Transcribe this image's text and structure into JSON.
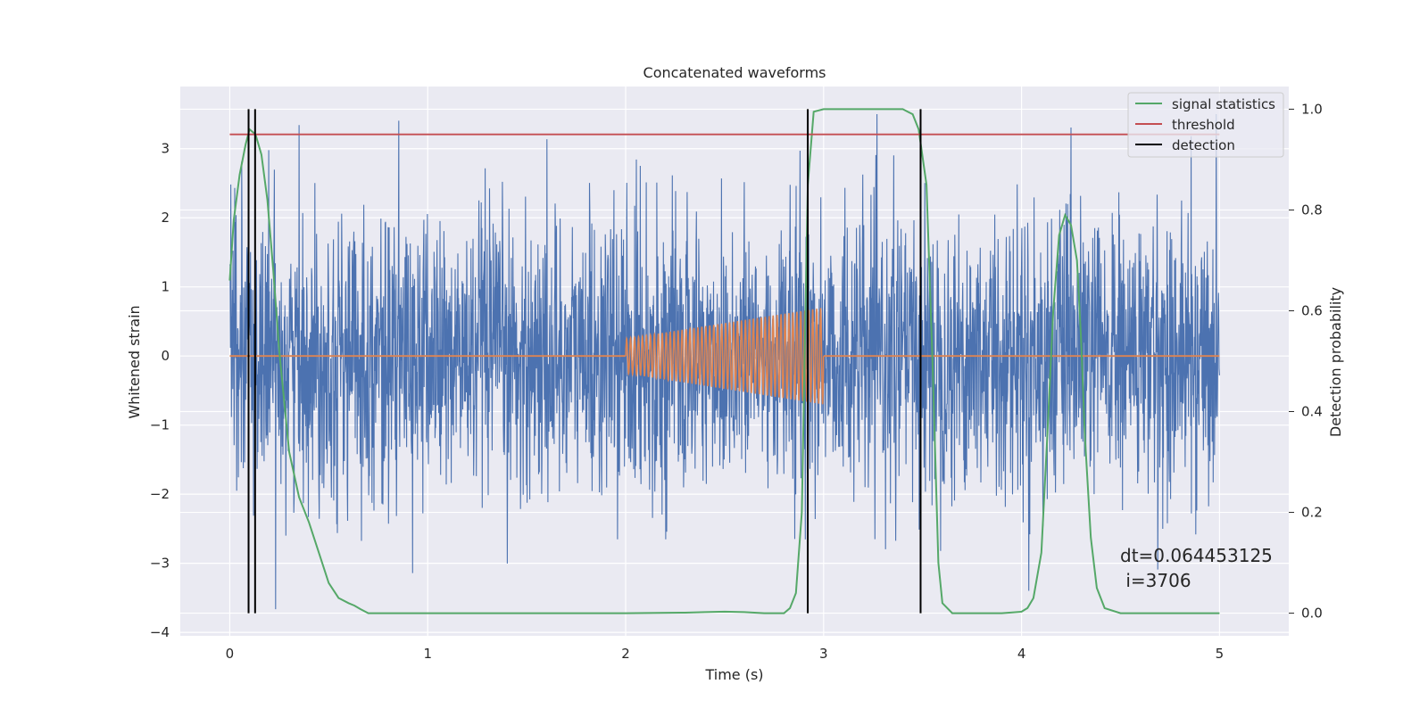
{
  "chart_data": {
    "type": "line",
    "title": "Concatenated waveforms",
    "xlabel": "Time (s)",
    "ylabel": "Whitened strain",
    "y2label": "Detection probability",
    "xlim": [
      -0.25,
      5.35
    ],
    "ylim": [
      -4.05,
      3.9
    ],
    "y2lim": [
      -0.045,
      1.045
    ],
    "x_ticks": [
      0,
      1,
      2,
      3,
      4,
      5
    ],
    "y_ticks": [
      -4,
      -3,
      -2,
      -1,
      0,
      1,
      2,
      3
    ],
    "y2_ticks": [
      0.0,
      0.2,
      0.4,
      0.6,
      0.8,
      1.0
    ],
    "grid": true,
    "legend_position": "top-right",
    "colors": {
      "noise": "#4c72b0",
      "waveform": "#dd8452",
      "signal_statistics": "#55a868",
      "threshold": "#c44e52",
      "detection": "#000000",
      "background": "#eaeaf2"
    },
    "series": [
      {
        "name": "",
        "role": "whitened noise strain",
        "x_range": [
          0,
          5
        ],
        "approx_amplitude_range": [
          -3.7,
          3.5
        ]
      },
      {
        "name": "",
        "role": "injected waveform (chirp)",
        "x_range": [
          2,
          3
        ],
        "start_amplitude": 0.25,
        "end_amplitude": 0.7,
        "cycles": 50
      },
      {
        "name": "signal statistics",
        "axis": "right",
        "x": [
          0.0,
          0.02,
          0.05,
          0.08,
          0.1,
          0.13,
          0.16,
          0.19,
          0.22,
          0.25,
          0.3,
          0.35,
          0.4,
          0.45,
          0.5,
          0.55,
          0.6,
          0.63,
          0.66,
          0.7,
          1.0,
          1.5,
          2.0,
          2.3,
          2.4,
          2.5,
          2.6,
          2.7,
          2.75,
          2.8,
          2.83,
          2.86,
          2.89,
          2.92,
          2.95,
          3.0,
          3.2,
          3.4,
          3.45,
          3.48,
          3.52,
          3.55,
          3.58,
          3.6,
          3.65,
          3.7,
          3.8,
          3.9,
          4.0,
          4.03,
          4.06,
          4.1,
          4.13,
          4.16,
          4.19,
          4.22,
          4.25,
          4.28,
          4.3,
          4.32,
          4.35,
          4.38,
          4.42,
          4.5,
          4.8,
          5.0
        ],
        "values": [
          0.66,
          0.78,
          0.87,
          0.93,
          0.96,
          0.95,
          0.91,
          0.82,
          0.68,
          0.52,
          0.32,
          0.23,
          0.18,
          0.12,
          0.06,
          0.03,
          0.02,
          0.015,
          0.008,
          0.0,
          0.0,
          0.0,
          0.0,
          0.001,
          0.002,
          0.003,
          0.002,
          0.0,
          0.0,
          0.0,
          0.01,
          0.04,
          0.2,
          0.85,
          0.995,
          1.0,
          1.0,
          1.0,
          0.99,
          0.96,
          0.85,
          0.5,
          0.1,
          0.02,
          0.0,
          0.0,
          0.0,
          0.0,
          0.003,
          0.01,
          0.03,
          0.12,
          0.35,
          0.6,
          0.75,
          0.79,
          0.77,
          0.7,
          0.55,
          0.35,
          0.15,
          0.05,
          0.01,
          0.0,
          0.0,
          0.0
        ]
      },
      {
        "name": "threshold",
        "axis": "right",
        "x": [
          0,
          5
        ],
        "values": [
          0.95,
          0.95
        ]
      },
      {
        "name": "detection",
        "type": "vlines",
        "x": [
          0.095,
          0.128,
          2.92,
          3.49
        ]
      }
    ],
    "annotation": {
      "line1": "dt=0.064453125",
      "line2": " i=3706",
      "x": 4.52,
      "y": -2.97
    }
  }
}
